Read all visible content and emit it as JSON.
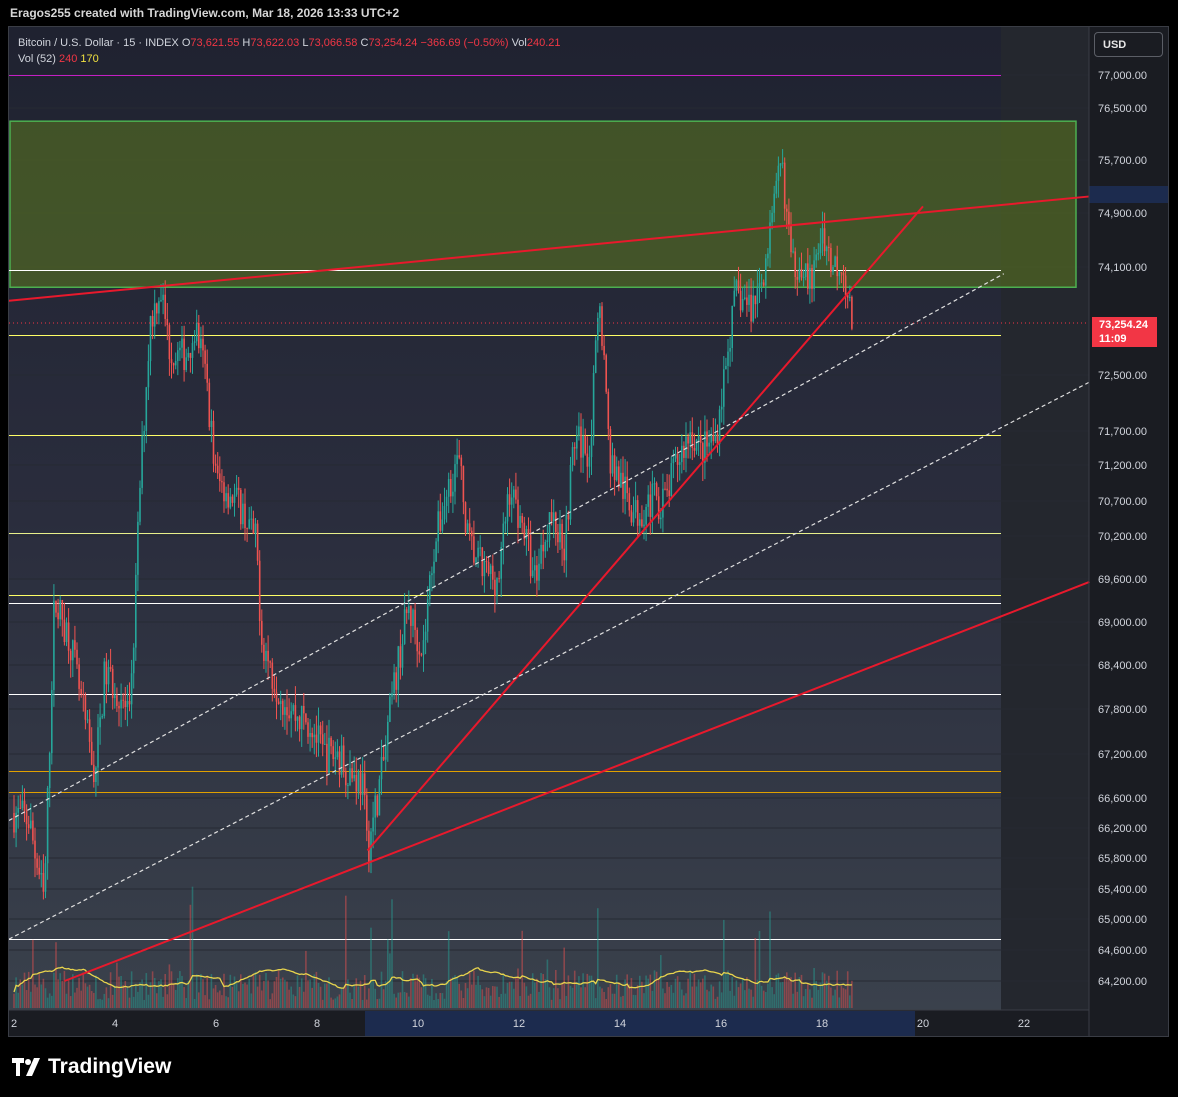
{
  "attribution": "Eragos255 created with TradingView.com, Mar 18, 2026 13:33 UTC+2",
  "legend": {
    "symbol": "Bitcoin / U.S. Dollar · 15 · INDEX",
    "o_label": "O",
    "o_value": "73,621.55",
    "h_label": "H",
    "h_value": "73,622.03",
    "l_label": "L",
    "l_value": "73,066.58",
    "c_label": "C",
    "c_value": "73,254.24",
    "change": "−366.69 (−0.50%)",
    "vol_label": "Vol",
    "vol_value": "240.21",
    "vol52_label": "Vol (52)",
    "vol52_a": "240",
    "vol52_b": "170"
  },
  "currency_button": "USD",
  "price_tag": {
    "price": "73,254.24",
    "countdown": "11:09"
  },
  "brand": "TradingView",
  "colors": {
    "up": "#26a69a",
    "down": "#ef5350",
    "trendline": "#e8192c",
    "zone": "#5d7a1f",
    "support_line": "#ffff66",
    "volume_ma": "#e8d44d"
  },
  "chart_data": {
    "type": "candlestick",
    "symbol": "Bitcoin / U.S. Dollar",
    "interval": "15",
    "x_ticks": [
      "2",
      "4",
      "6",
      "8",
      "10",
      "12",
      "14",
      "16",
      "18",
      "20",
      "22"
    ],
    "y_ticks": [
      "77,000.00",
      "76,500.00",
      "75,700.00",
      "74,900.00",
      "74,100.00",
      "72,500.00",
      "71,700.00",
      "71,200.00",
      "70,700.00",
      "70,200.00",
      "69,600.00",
      "69,000.00",
      "68,400.00",
      "67,800.00",
      "67,200.00",
      "66,600.00",
      "66,200.00",
      "65,800.00",
      "65,400.00",
      "65,000.00",
      "64,600.00",
      "64,200.00"
    ],
    "price_path": [
      {
        "day": 2.0,
        "price": 66400
      },
      {
        "day": 2.3,
        "price": 66300
      },
      {
        "day": 2.6,
        "price": 65200
      },
      {
        "day": 2.8,
        "price": 69300
      },
      {
        "day": 3.1,
        "price": 68800
      },
      {
        "day": 3.3,
        "price": 68000
      },
      {
        "day": 3.6,
        "price": 66900
      },
      {
        "day": 3.8,
        "price": 68300
      },
      {
        "day": 4.1,
        "price": 68000
      },
      {
        "day": 4.3,
        "price": 67600
      },
      {
        "day": 4.5,
        "price": 71000
      },
      {
        "day": 4.7,
        "price": 73300
      },
      {
        "day": 4.9,
        "price": 73800
      },
      {
        "day": 5.1,
        "price": 72800
      },
      {
        "day": 5.4,
        "price": 72800
      },
      {
        "day": 5.6,
        "price": 73200
      },
      {
        "day": 5.8,
        "price": 72500
      },
      {
        "day": 6.0,
        "price": 71000
      },
      {
        "day": 6.3,
        "price": 70800
      },
      {
        "day": 6.5,
        "price": 70600
      },
      {
        "day": 6.8,
        "price": 70100
      },
      {
        "day": 6.9,
        "price": 68800
      },
      {
        "day": 7.1,
        "price": 68300
      },
      {
        "day": 7.3,
        "price": 68000
      },
      {
        "day": 7.6,
        "price": 67700
      },
      {
        "day": 7.9,
        "price": 67600
      },
      {
        "day": 8.1,
        "price": 67200
      },
      {
        "day": 8.4,
        "price": 67200
      },
      {
        "day": 8.6,
        "price": 67000
      },
      {
        "day": 8.9,
        "price": 66800
      },
      {
        "day": 9.0,
        "price": 65900
      },
      {
        "day": 9.3,
        "price": 67000
      },
      {
        "day": 9.5,
        "price": 68000
      },
      {
        "day": 9.8,
        "price": 69200
      },
      {
        "day": 10.1,
        "price": 68600
      },
      {
        "day": 10.3,
        "price": 70000
      },
      {
        "day": 10.6,
        "price": 70900
      },
      {
        "day": 10.8,
        "price": 71300
      },
      {
        "day": 11.0,
        "price": 70100
      },
      {
        "day": 11.3,
        "price": 69700
      },
      {
        "day": 11.6,
        "price": 69600
      },
      {
        "day": 11.8,
        "price": 70900
      },
      {
        "day": 12.1,
        "price": 70300
      },
      {
        "day": 12.3,
        "price": 69600
      },
      {
        "day": 12.6,
        "price": 70500
      },
      {
        "day": 12.9,
        "price": 70100
      },
      {
        "day": 13.1,
        "price": 71600
      },
      {
        "day": 13.4,
        "price": 71400
      },
      {
        "day": 13.6,
        "price": 73700
      },
      {
        "day": 13.8,
        "price": 71300
      },
      {
        "day": 14.1,
        "price": 70800
      },
      {
        "day": 14.3,
        "price": 70500
      },
      {
        "day": 14.6,
        "price": 70700
      },
      {
        "day": 14.9,
        "price": 70700
      },
      {
        "day": 15.1,
        "price": 71200
      },
      {
        "day": 15.4,
        "price": 71700
      },
      {
        "day": 15.6,
        "price": 71400
      },
      {
        "day": 15.9,
        "price": 71600
      },
      {
        "day": 16.1,
        "price": 72700
      },
      {
        "day": 16.3,
        "price": 73700
      },
      {
        "day": 16.6,
        "price": 73500
      },
      {
        "day": 16.8,
        "price": 73900
      },
      {
        "day": 17.0,
        "price": 74700
      },
      {
        "day": 17.2,
        "price": 75700
      },
      {
        "day": 17.4,
        "price": 74100
      },
      {
        "day": 17.6,
        "price": 74200
      },
      {
        "day": 17.8,
        "price": 73800
      },
      {
        "day": 18.0,
        "price": 74700
      },
      {
        "day": 18.2,
        "price": 74100
      },
      {
        "day": 18.4,
        "price": 74200
      },
      {
        "day": 18.6,
        "price": 73254
      }
    ],
    "ohlc_last": {
      "open": 73621.55,
      "high": 73622.03,
      "low": 73066.58,
      "close": 73254.24
    },
    "resistance_zone": {
      "low": 73800,
      "high": 77700
    },
    "horizontal_levels": [
      77000,
      74050,
      73100,
      71640,
      70240,
      69380,
      69260,
      68000,
      66970,
      66680,
      64740
    ],
    "trendlines": [
      {
        "style": "solid",
        "from": {
          "day": 1.9,
          "price": 73600
        },
        "to": {
          "day": 23.3,
          "price": 75150
        }
      },
      {
        "style": "solid",
        "from": {
          "day": 3.0,
          "price": 64200
        },
        "to": {
          "day": 23.3,
          "price": 69560
        }
      },
      {
        "style": "solid",
        "from": {
          "day": 9.0,
          "price": 65900
        },
        "to": {
          "day": 20.0,
          "price": 75000
        }
      },
      {
        "style": "dashed",
        "from": {
          "day": 1.9,
          "price": 66300
        },
        "to": {
          "day": 21.6,
          "price": 74000
        }
      },
      {
        "style": "dashed",
        "from": {
          "day": 1.9,
          "price": 64740
        },
        "to": {
          "day": 23.3,
          "price": 72400
        }
      }
    ],
    "volume_ma_length": 52,
    "last_volume": 240.21
  }
}
